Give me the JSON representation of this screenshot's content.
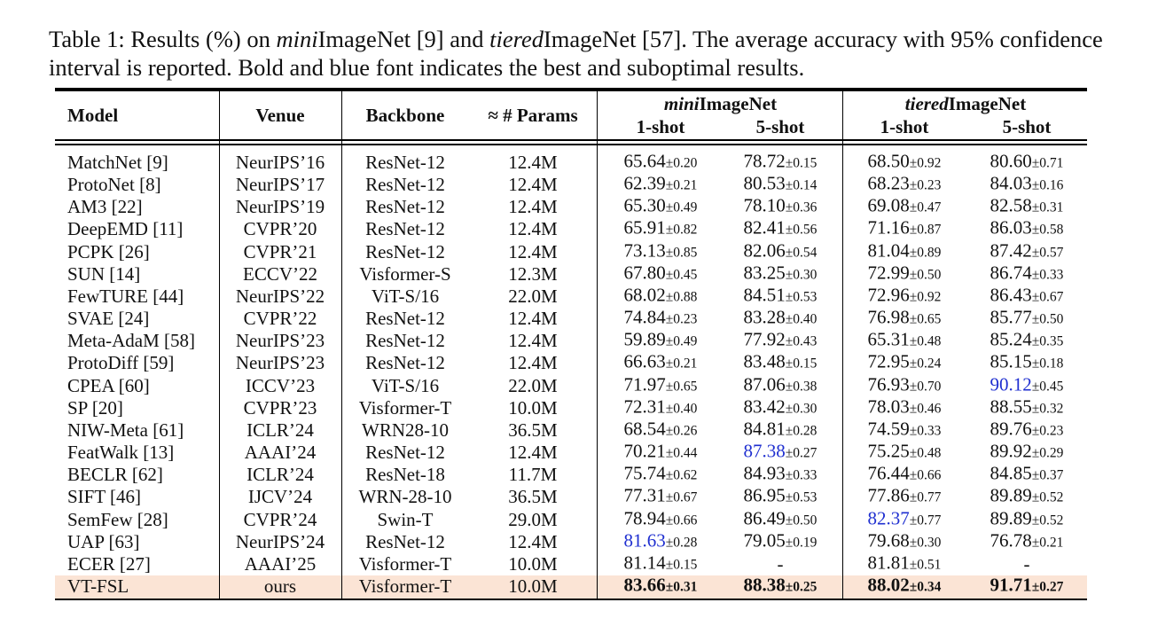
{
  "caption": [
    {
      "text": "Table 1: Results (%) on "
    },
    {
      "text": "mini",
      "italic": true
    },
    {
      "text": "ImageNet [9] and "
    },
    {
      "text": "tiered",
      "italic": true
    },
    {
      "text": "ImageNet [57]. The average accuracy with 95% confidence interval is reported. Bold and blue font indicates the best and suboptimal results."
    }
  ],
  "header": {
    "columns": [
      "Model",
      "Venue",
      "Backbone",
      "≈ # Params"
    ],
    "groups": [
      {
        "italic": "mini",
        "rest": "ImageNet",
        "subcolumns": [
          "1-shot",
          "5-shot"
        ]
      },
      {
        "italic": "tiered",
        "rest": "ImageNet",
        "subcolumns": [
          "1-shot",
          "5-shot"
        ]
      }
    ]
  },
  "rows": [
    {
      "cells": [
        "MatchNet [9]",
        "NeurIPS’16",
        "ResNet-12",
        "12.4M",
        {
          "mean": "65.64",
          "ci": "±0.20"
        },
        {
          "mean": "78.72",
          "ci": "±0.15"
        },
        {
          "mean": "68.50",
          "ci": "±0.92"
        },
        {
          "mean": "80.60",
          "ci": "±0.71"
        }
      ]
    },
    {
      "cells": [
        "ProtoNet [8]",
        "NeurIPS’17",
        "ResNet-12",
        "12.4M",
        {
          "mean": "62.39",
          "ci": "±0.21"
        },
        {
          "mean": "80.53",
          "ci": "±0.14"
        },
        {
          "mean": "68.23",
          "ci": "±0.23"
        },
        {
          "mean": "84.03",
          "ci": "±0.16"
        }
      ]
    },
    {
      "cells": [
        "AM3 [22]",
        "NeurIPS’19",
        "ResNet-12",
        "12.4M",
        {
          "mean": "65.30",
          "ci": "±0.49"
        },
        {
          "mean": "78.10",
          "ci": "±0.36"
        },
        {
          "mean": "69.08",
          "ci": "±0.47"
        },
        {
          "mean": "82.58",
          "ci": "±0.31"
        }
      ]
    },
    {
      "cells": [
        "DeepEMD [11]",
        "CVPR’20",
        "ResNet-12",
        "12.4M",
        {
          "mean": "65.91",
          "ci": "±0.82"
        },
        {
          "mean": "82.41",
          "ci": "±0.56"
        },
        {
          "mean": "71.16",
          "ci": "±0.87"
        },
        {
          "mean": "86.03",
          "ci": "±0.58"
        }
      ]
    },
    {
      "cells": [
        "PCPK [26]",
        "CVPR’21",
        "ResNet-12",
        "12.4M",
        {
          "mean": "73.13",
          "ci": "±0.85"
        },
        {
          "mean": "82.06",
          "ci": "±0.54"
        },
        {
          "mean": "81.04",
          "ci": "±0.89"
        },
        {
          "mean": "87.42",
          "ci": "±0.57"
        }
      ]
    },
    {
      "cells": [
        "SUN [14]",
        "ECCV’22",
        "Visformer-S",
        "12.3M",
        {
          "mean": "67.80",
          "ci": "±0.45"
        },
        {
          "mean": "83.25",
          "ci": "±0.30"
        },
        {
          "mean": "72.99",
          "ci": "±0.50"
        },
        {
          "mean": "86.74",
          "ci": "±0.33"
        }
      ]
    },
    {
      "cells": [
        "FewTURE [44]",
        "NeurIPS’22",
        "ViT-S/16",
        "22.0M",
        {
          "mean": "68.02",
          "ci": "±0.88"
        },
        {
          "mean": "84.51",
          "ci": "±0.53"
        },
        {
          "mean": "72.96",
          "ci": "±0.92"
        },
        {
          "mean": "86.43",
          "ci": "±0.67"
        }
      ]
    },
    {
      "cells": [
        "SVAE [24]",
        "CVPR’22",
        "ResNet-12",
        "12.4M",
        {
          "mean": "74.84",
          "ci": "±0.23"
        },
        {
          "mean": "83.28",
          "ci": "±0.40"
        },
        {
          "mean": "76.98",
          "ci": "±0.65"
        },
        {
          "mean": "85.77",
          "ci": "±0.50"
        }
      ]
    },
    {
      "cells": [
        "Meta-AdaM [58]",
        "NeurIPS’23",
        "ResNet-12",
        "12.4M",
        {
          "mean": "59.89",
          "ci": "±0.49"
        },
        {
          "mean": "77.92",
          "ci": "±0.43"
        },
        {
          "mean": "65.31",
          "ci": "±0.48"
        },
        {
          "mean": "85.24",
          "ci": "±0.35"
        }
      ]
    },
    {
      "cells": [
        "ProtoDiff [59]",
        "NeurIPS’23",
        "ResNet-12",
        "12.4M",
        {
          "mean": "66.63",
          "ci": "±0.21"
        },
        {
          "mean": "83.48",
          "ci": "±0.15"
        },
        {
          "mean": "72.95",
          "ci": "±0.24"
        },
        {
          "mean": "85.15",
          "ci": "±0.18"
        }
      ]
    },
    {
      "cells": [
        "CPEA [60]",
        "ICCV’23",
        "ViT-S/16",
        "22.0M",
        {
          "mean": "71.97",
          "ci": "±0.65"
        },
        {
          "mean": "87.06",
          "ci": "±0.38"
        },
        {
          "mean": "76.93",
          "ci": "±0.70"
        },
        {
          "mean": "90.12",
          "ci": "±0.45",
          "blue": true
        }
      ]
    },
    {
      "cells": [
        "SP [20]",
        "CVPR’23",
        "Visformer-T",
        "10.0M",
        {
          "mean": "72.31",
          "ci": "±0.40"
        },
        {
          "mean": "83.42",
          "ci": "±0.30"
        },
        {
          "mean": "78.03",
          "ci": "±0.46"
        },
        {
          "mean": "88.55",
          "ci": "±0.32"
        }
      ]
    },
    {
      "cells": [
        "NIW-Meta [61]",
        "ICLR’24",
        "WRN28-10",
        "36.5M",
        {
          "mean": "68.54",
          "ci": "±0.26"
        },
        {
          "mean": "84.81",
          "ci": "±0.28"
        },
        {
          "mean": "74.59",
          "ci": "±0.33"
        },
        {
          "mean": "89.76",
          "ci": "±0.23"
        }
      ]
    },
    {
      "cells": [
        "FeatWalk [13]",
        "AAAI’24",
        "ResNet-12",
        "12.4M",
        {
          "mean": "70.21",
          "ci": "±0.44"
        },
        {
          "mean": "87.38",
          "ci": "±0.27",
          "blue": true
        },
        {
          "mean": "75.25",
          "ci": "±0.48"
        },
        {
          "mean": "89.92",
          "ci": "±0.29"
        }
      ]
    },
    {
      "cells": [
        "BECLR [62]",
        "ICLR’24",
        "ResNet-18",
        "11.7M",
        {
          "mean": "75.74",
          "ci": "±0.62"
        },
        {
          "mean": "84.93",
          "ci": "±0.33"
        },
        {
          "mean": "76.44",
          "ci": "±0.66"
        },
        {
          "mean": "84.85",
          "ci": "±0.37"
        }
      ]
    },
    {
      "cells": [
        "SIFT [46]",
        "IJCV’24",
        "WRN-28-10",
        "36.5M",
        {
          "mean": "77.31",
          "ci": "±0.67"
        },
        {
          "mean": "86.95",
          "ci": "±0.53"
        },
        {
          "mean": "77.86",
          "ci": "±0.77"
        },
        {
          "mean": "89.89",
          "ci": "±0.52"
        }
      ]
    },
    {
      "cells": [
        "SemFew [28]",
        "CVPR’24",
        "Swin-T",
        "29.0M",
        {
          "mean": "78.94",
          "ci": "±0.66"
        },
        {
          "mean": "86.49",
          "ci": "±0.50"
        },
        {
          "mean": "82.37",
          "ci": "±0.77",
          "blue": true
        },
        {
          "mean": "89.89",
          "ci": "±0.52"
        }
      ]
    },
    {
      "cells": [
        "UAP [63]",
        "NeurIPS’24",
        "ResNet-12",
        "12.4M",
        {
          "mean": "81.63",
          "ci": "±0.28",
          "blue": true
        },
        {
          "mean": "79.05",
          "ci": "±0.19"
        },
        {
          "mean": "79.68",
          "ci": "±0.30"
        },
        {
          "mean": "76.78",
          "ci": "±0.21"
        }
      ]
    },
    {
      "cells": [
        "ECER [27]",
        "AAAI’25",
        "Visformer-T",
        "10.0M",
        {
          "mean": "81.14",
          "ci": "±0.15"
        },
        {
          "mean": "-"
        },
        {
          "mean": "81.81",
          "ci": "±0.51"
        },
        {
          "mean": "-"
        }
      ]
    },
    {
      "cells": [
        "VT-FSL",
        "ours",
        "Visformer-T",
        "10.0M",
        {
          "mean": "83.66",
          "ci": "±0.31"
        },
        {
          "mean": "88.38",
          "ci": "±0.25"
        },
        {
          "mean": "88.02",
          "ci": "±0.34"
        },
        {
          "mean": "91.71",
          "ci": "±0.27"
        }
      ],
      "bold": true,
      "highlight": true
    }
  ]
}
